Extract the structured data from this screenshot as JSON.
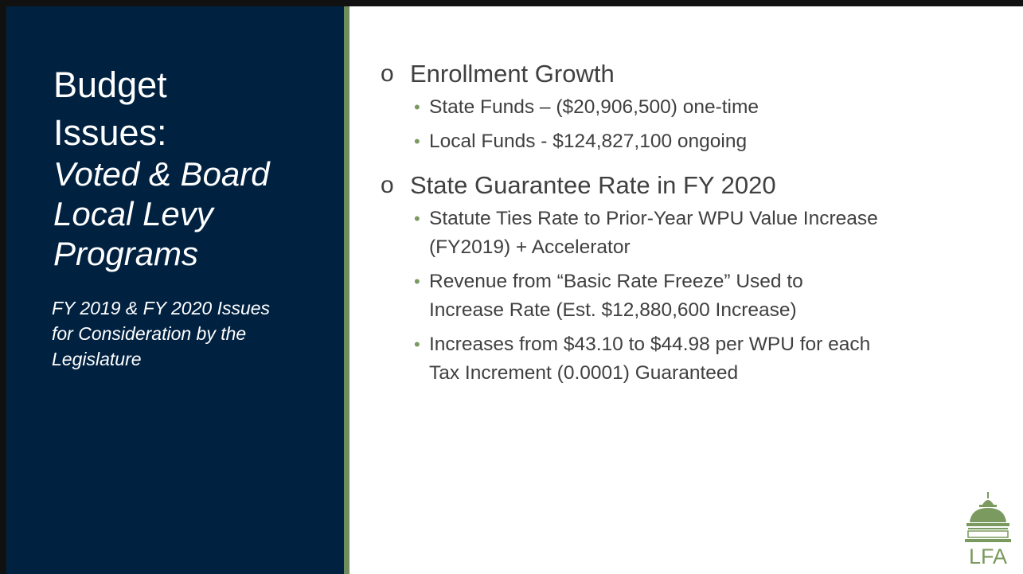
{
  "slide": {
    "title_lines": [
      "Budget",
      "Issues:"
    ],
    "subtitle_lines": [
      "Voted & Board",
      "Local Levy",
      "Programs"
    ],
    "description_lines": [
      "FY 2019 & FY 2020 Issues",
      "for Consideration by the",
      "Legislature"
    ],
    "sections": [
      {
        "heading": "Enrollment Growth",
        "items": [
          {
            "lines": [
              "State Funds – ($20,906,500) one-time"
            ]
          },
          {
            "lines": [
              "Local Funds - $124,827,100 ongoing"
            ]
          }
        ]
      },
      {
        "heading": "State Guarantee Rate in FY 2020",
        "items": [
          {
            "lines": [
              "Statute Ties Rate to Prior-Year WPU Value Increase",
              "(FY2019) + Accelerator"
            ]
          },
          {
            "lines": [
              "Revenue from “Basic Rate Freeze” Used to",
              "Increase Rate (Est. $12,880,600 Increase)"
            ]
          },
          {
            "lines": [
              "Increases from $43.10 to $44.98 per WPU for each",
              "Tax Increment (0.0001) Guaranteed"
            ]
          }
        ]
      }
    ],
    "logo_text": "LFA"
  }
}
